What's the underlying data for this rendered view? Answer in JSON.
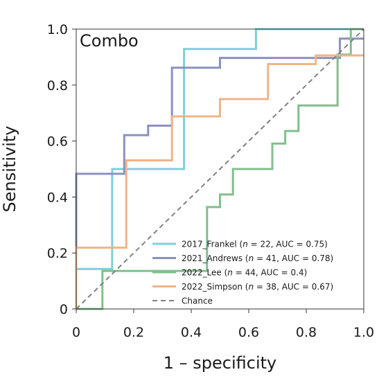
{
  "chart_data": {
    "type": "line",
    "title": "Combo",
    "xlabel": "1 – specificity",
    "ylabel": "Sensitivity",
    "xlim": [
      0,
      1
    ],
    "ylim": [
      0,
      1
    ],
    "x_ticks": [
      "0",
      "0.2",
      "0.4",
      "0.6",
      "0.8",
      "1.0"
    ],
    "y_ticks": [
      "0",
      "0.2",
      "0.4",
      "0.6",
      "0.8",
      "1.0"
    ],
    "grid": false,
    "legend_position": "bottom-right",
    "series": [
      {
        "name_parts": [
          "2017_Frankel (",
          "n",
          " = 22, AUC = 0.75)"
        ],
        "color": "#7ecfdb",
        "x": [
          0,
          0,
          0.125,
          0.125,
          0.375,
          0.375,
          0.625,
          0.625,
          1.0
        ],
        "y": [
          0,
          0.143,
          0.143,
          0.5,
          0.5,
          0.929,
          0.929,
          1.0,
          1.0
        ]
      },
      {
        "name_parts": [
          "2021_Andrews (",
          "n",
          " = 41, AUC = 0.78)"
        ],
        "color": "#8a90c0",
        "x": [
          0,
          0,
          0.167,
          0.167,
          0.25,
          0.25,
          0.333,
          0.333,
          0.5,
          0.5,
          0.917,
          0.917,
          1.0
        ],
        "y": [
          0,
          0.483,
          0.483,
          0.621,
          0.621,
          0.655,
          0.655,
          0.862,
          0.862,
          0.897,
          0.897,
          0.966,
          0.966
        ]
      },
      {
        "name_parts": [
          "2022_Lee (",
          "n",
          " = 44, AUC = 0.4)"
        ],
        "color": "#80bf8c",
        "x": [
          0,
          0.091,
          0.091,
          0.455,
          0.455,
          0.5,
          0.5,
          0.545,
          0.545,
          0.682,
          0.682,
          0.727,
          0.727,
          0.773,
          0.773,
          0.909,
          0.909,
          0.955,
          0.955,
          1.0
        ],
        "y": [
          0,
          0,
          0.136,
          0.136,
          0.364,
          0.364,
          0.409,
          0.409,
          0.5,
          0.5,
          0.591,
          0.591,
          0.636,
          0.636,
          0.727,
          0.727,
          0.909,
          0.909,
          1.0,
          1.0
        ]
      },
      {
        "name_parts": [
          "2022_Simpson (",
          "n",
          " = 38, AUC = 0.67)"
        ],
        "color": "#eeb48a",
        "x": [
          0,
          0,
          0.174,
          0.174,
          0.333,
          0.333,
          0.5,
          0.5,
          0.667,
          0.667,
          0.833,
          0.833,
          1.0
        ],
        "y": [
          0,
          0.219,
          0.219,
          0.531,
          0.531,
          0.688,
          0.688,
          0.75,
          0.75,
          0.875,
          0.875,
          0.906,
          0.906
        ]
      },
      {
        "name": "Chance",
        "color": "#808080",
        "dashed": true,
        "x": [
          0,
          1
        ],
        "y": [
          0,
          1
        ]
      }
    ]
  }
}
